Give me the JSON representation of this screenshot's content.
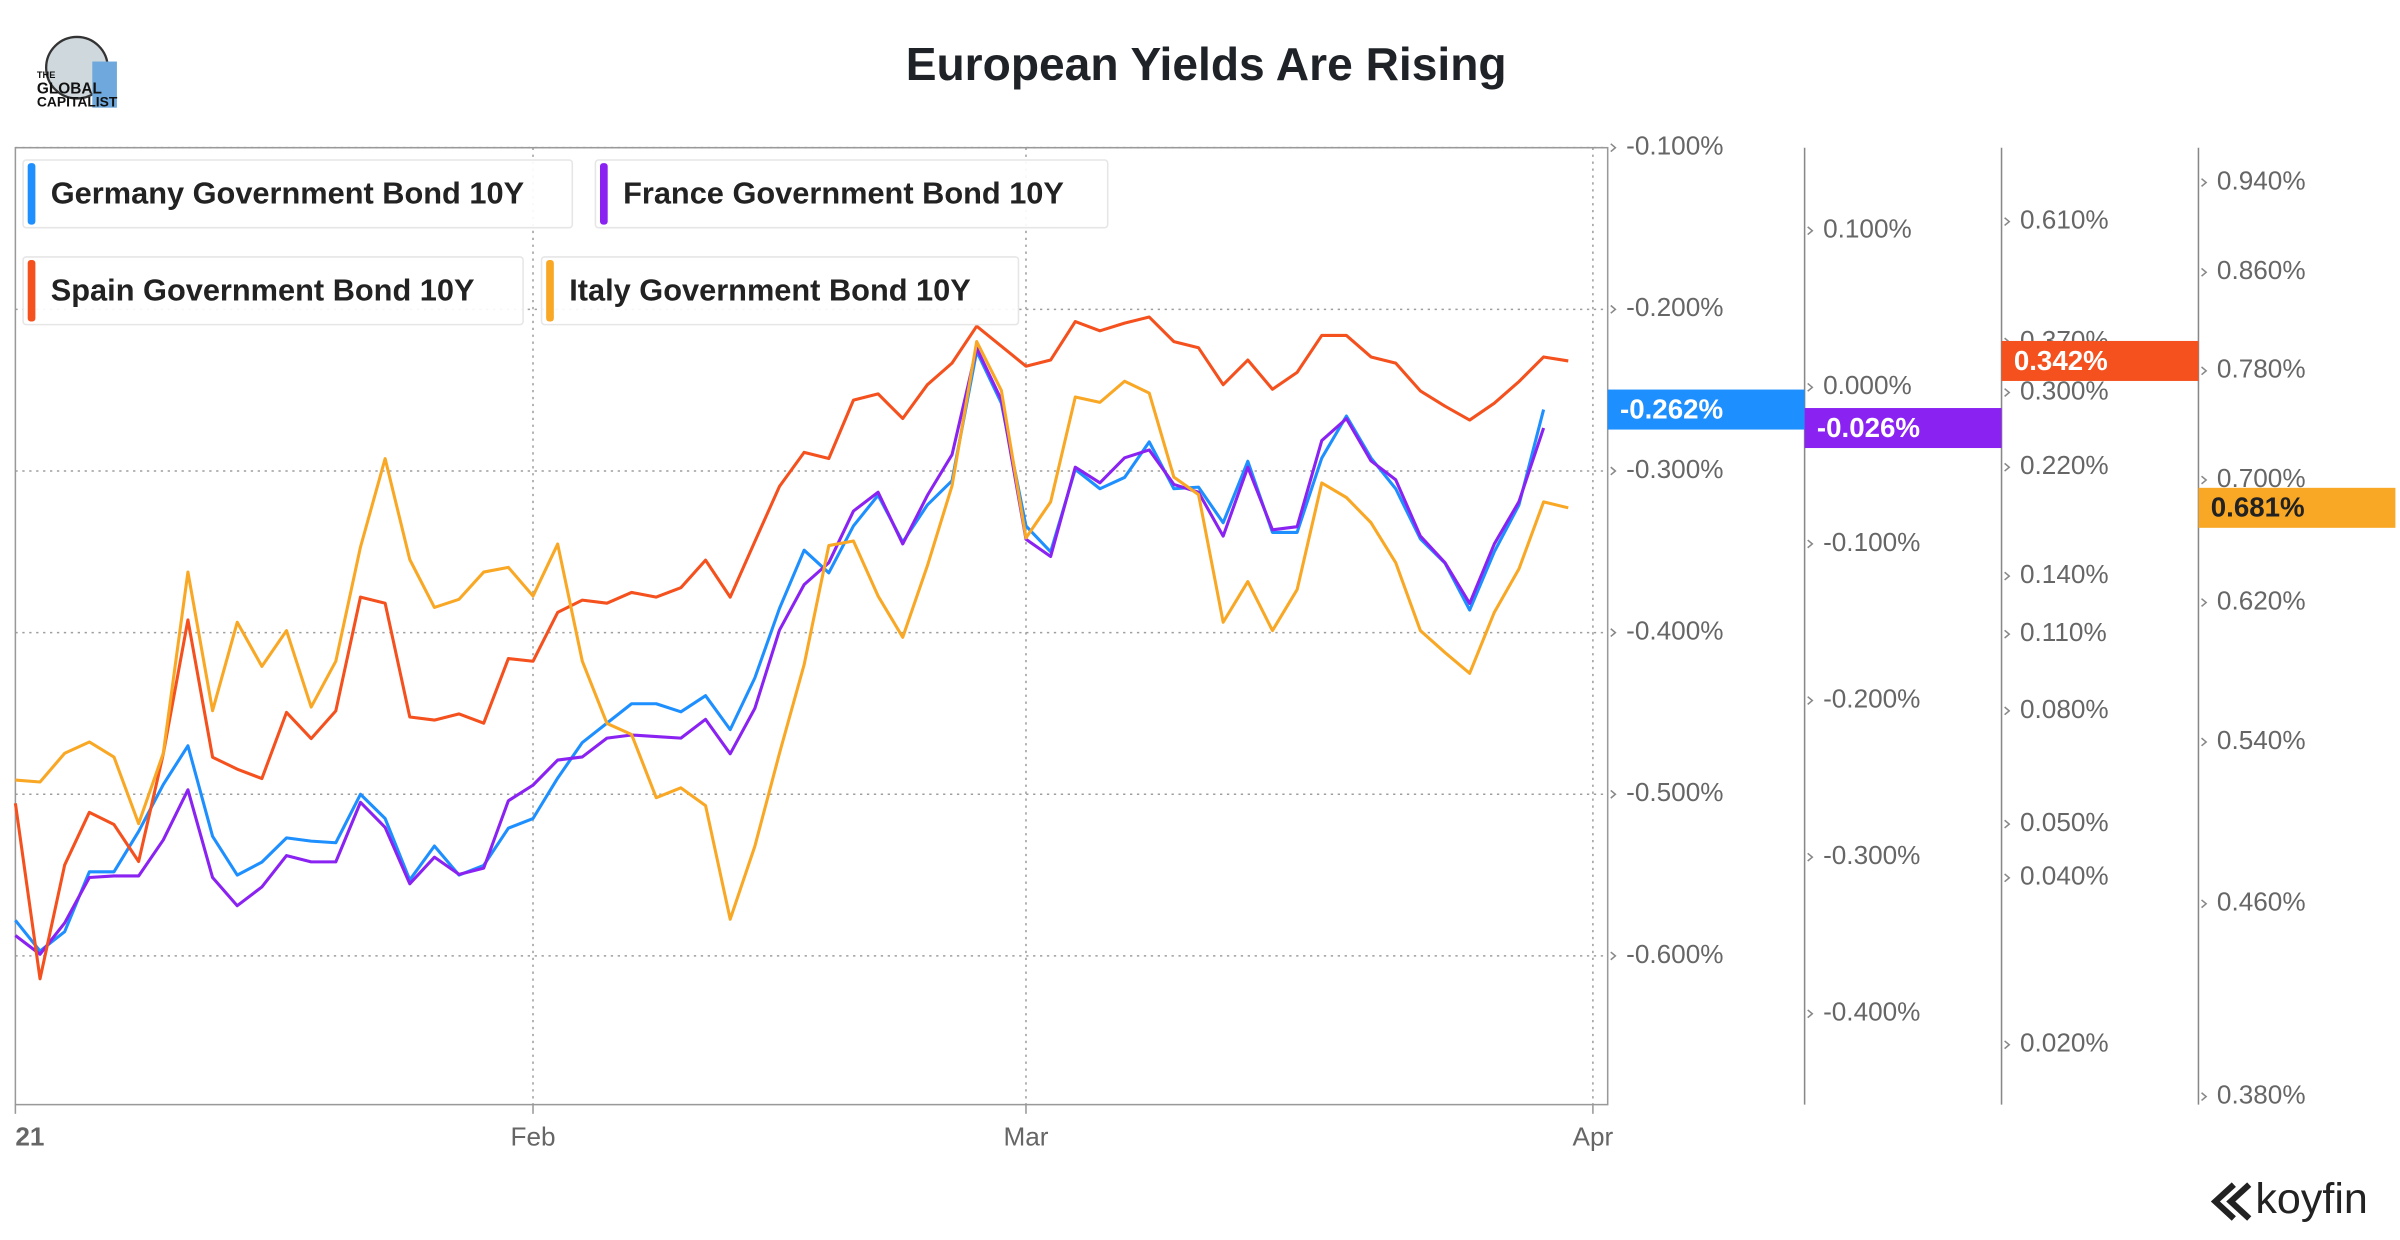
{
  "logo_lines": [
    "THE",
    "GLOBAL",
    "CAPITALIST"
  ],
  "brand": "koyfin",
  "chart_data": {
    "type": "line",
    "title": "European Yields Are Rising",
    "x": [
      0,
      1,
      2,
      3,
      4,
      5,
      6,
      7,
      8,
      9,
      10,
      11,
      12,
      13,
      14,
      15,
      16,
      17,
      18,
      19,
      20,
      21,
      22,
      23,
      24,
      25,
      26,
      27,
      28,
      29,
      30,
      31,
      32,
      33,
      34,
      35,
      36,
      37,
      38,
      39,
      40,
      41,
      42,
      43,
      44,
      45,
      46,
      47,
      48,
      49,
      50,
      51,
      52,
      53,
      54,
      55,
      56,
      57,
      58,
      59,
      60,
      61,
      62,
      63
    ],
    "xlim": [
      0,
      64.6
    ],
    "xticks": [
      {
        "value": 0,
        "label": "21"
      },
      {
        "value": 21,
        "label": "Feb"
      },
      {
        "value": 41,
        "label": "Mar"
      },
      {
        "value": 64,
        "label": "Apr"
      }
    ],
    "grid": true,
    "ylim": [
      -0.692,
      -0.1
    ],
    "yticks": [
      {
        "value": -0.1,
        "label": "-0.100%"
      },
      {
        "value": -0.2,
        "label": "-0.200%"
      },
      {
        "value": -0.3,
        "label": "-0.300%"
      },
      {
        "value": -0.4,
        "label": "-0.400%"
      },
      {
        "value": -0.5,
        "label": "-0.500%"
      },
      {
        "value": -0.6,
        "label": "-0.600%"
      }
    ],
    "y2lim": [
      -0.458,
      0.153
    ],
    "y2ticks": [
      {
        "value": 0.1,
        "label": "0.100%"
      },
      {
        "value": 0,
        "label": "0.000%"
      },
      {
        "value": -0.1,
        "label": "-0.100%"
      },
      {
        "value": -0.2,
        "label": "-0.200%"
      },
      {
        "value": -0.3,
        "label": "-0.300%"
      },
      {
        "value": -0.4,
        "label": "-0.400%"
      }
    ],
    "y3lim": [
      0.0156,
      0.829
    ],
    "y3scale": "log",
    "y3ticks": [
      {
        "value": 0.61,
        "label": "0.610%"
      },
      {
        "value": 0.37,
        "label": "0.370%"
      },
      {
        "value": 0.3,
        "label": "0.300%"
      },
      {
        "value": 0.22,
        "label": "0.220%"
      },
      {
        "value": 0.14,
        "label": "0.140%"
      },
      {
        "value": 0.11,
        "label": "0.110%"
      },
      {
        "value": 0.08,
        "label": "0.080%"
      },
      {
        "value": 0.05,
        "label": "0.050%"
      },
      {
        "value": 0.04,
        "label": "0.040%"
      },
      {
        "value": 0.02,
        "label": "0.020%"
      }
    ],
    "y4lim": [
      0.377,
      0.973
    ],
    "y4scale": "log",
    "y4ticks": [
      {
        "value": 0.94,
        "label": "0.940%"
      },
      {
        "value": 0.86,
        "label": "0.860%"
      },
      {
        "value": 0.78,
        "label": "0.780%"
      },
      {
        "value": 0.7,
        "label": "0.700%"
      },
      {
        "value": 0.62,
        "label": "0.620%"
      },
      {
        "value": 0.54,
        "label": "0.540%"
      },
      {
        "value": 0.46,
        "label": "0.460%"
      },
      {
        "value": 0.38,
        "label": "0.380%"
      }
    ],
    "series": [
      {
        "name": "Germany Government Bond 10Y",
        "color": "#1e8fff",
        "axis": "y",
        "values": [
          -0.578,
          -0.597,
          -0.585,
          -0.548,
          -0.548,
          -0.523,
          -0.494,
          -0.47,
          -0.526,
          -0.55,
          -0.542,
          -0.527,
          -0.529,
          -0.53,
          -0.5,
          -0.515,
          -0.553,
          -0.532,
          -0.55,
          -0.544,
          -0.521,
          -0.515,
          -0.49,
          -0.468,
          -0.456,
          -0.444,
          -0.444,
          -0.449,
          -0.439,
          -0.46,
          -0.428,
          -0.385,
          -0.349,
          -0.363,
          -0.334,
          -0.315,
          -0.344,
          -0.321,
          -0.306,
          -0.226,
          -0.258,
          -0.334,
          -0.35,
          -0.299,
          -0.311,
          -0.304,
          -0.282,
          -0.311,
          -0.31,
          -0.332,
          -0.294,
          -0.338,
          -0.338,
          -0.292,
          -0.266,
          -0.292,
          -0.311,
          -0.342,
          -0.357,
          -0.386,
          -0.35,
          -0.321,
          -0.262,
          null
        ],
        "value_labels": [
          null,
          null,
          null,
          null,
          null,
          null,
          null,
          null,
          null,
          null,
          null,
          null,
          null,
          null,
          null,
          null,
          null,
          null,
          null,
          null,
          null,
          null,
          null,
          null,
          null,
          null,
          null,
          null,
          null,
          null,
          null,
          null,
          null,
          null,
          null,
          null,
          null,
          null,
          null,
          null,
          null,
          null,
          null,
          null,
          null,
          null,
          null,
          null,
          null,
          null,
          null,
          null,
          null,
          null,
          null,
          null,
          null,
          null,
          null,
          null,
          null,
          null,
          "-0.262%",
          null
        ]
      },
      {
        "name": "France Government Bond 10Y",
        "color": "#8a22f2",
        "axis": "y2",
        "values": [
          -0.35,
          -0.362,
          -0.342,
          -0.313,
          -0.312,
          -0.312,
          -0.289,
          -0.257,
          -0.313,
          -0.331,
          -0.319,
          -0.299,
          -0.303,
          -0.303,
          -0.265,
          -0.281,
          -0.317,
          -0.3,
          -0.311,
          -0.307,
          -0.264,
          -0.254,
          -0.238,
          -0.236,
          -0.224,
          -0.222,
          -0.223,
          -0.224,
          -0.212,
          -0.234,
          -0.205,
          -0.155,
          -0.126,
          -0.112,
          -0.079,
          -0.067,
          -0.1,
          -0.069,
          -0.043,
          0.025,
          -0.008,
          -0.097,
          -0.108,
          -0.051,
          -0.061,
          -0.045,
          -0.04,
          -0.062,
          -0.067,
          -0.095,
          -0.051,
          -0.091,
          -0.089,
          -0.034,
          -0.02,
          -0.047,
          -0.059,
          -0.095,
          -0.112,
          -0.138,
          -0.1,
          -0.073,
          -0.026,
          null
        ],
        "value_labels": [
          null,
          null,
          null,
          null,
          null,
          null,
          null,
          null,
          null,
          null,
          null,
          null,
          null,
          null,
          null,
          null,
          null,
          null,
          null,
          null,
          null,
          null,
          null,
          null,
          null,
          null,
          null,
          null,
          null,
          null,
          null,
          null,
          null,
          null,
          null,
          null,
          null,
          null,
          null,
          null,
          null,
          null,
          null,
          null,
          null,
          null,
          null,
          null,
          null,
          null,
          null,
          null,
          null,
          null,
          null,
          null,
          null,
          null,
          null,
          null,
          null,
          null,
          "-0.026%",
          null
        ]
      },
      {
        "name": "Spain Government Bond 10Y",
        "color": "#f4511e",
        "axis": "y3",
        "values": [
          0.0545,
          0.0263,
          0.0422,
          0.0525,
          0.0499,
          0.0428,
          0.0669,
          0.1167,
          0.066,
          0.0628,
          0.0604,
          0.0795,
          0.0713,
          0.08,
          0.1283,
          0.1251,
          0.078,
          0.077,
          0.079,
          0.076,
          0.0994,
          0.0983,
          0.1204,
          0.1267,
          0.1251,
          0.1308,
          0.1283,
          0.1334,
          0.1496,
          0.1283,
          0.1616,
          0.2032,
          0.234,
          0.2281,
          0.2907,
          0.2983,
          0.2693,
          0.3099,
          0.3389,
          0.3951,
          0.3636,
          0.3346,
          0.3433,
          0.4027,
          0.3876,
          0.4001,
          0.4104,
          0.3706,
          0.3612,
          0.3099,
          0.3433,
          0.3041,
          0.3261,
          0.3802,
          0.3802,
          0.3477,
          0.3389,
          0.302,
          0.2834,
          0.2676,
          0.287,
          0.3139,
          0.3477,
          0.342
        ],
        "value_labels": [
          null,
          null,
          null,
          null,
          null,
          null,
          null,
          null,
          null,
          null,
          null,
          null,
          null,
          null,
          null,
          null,
          null,
          null,
          null,
          null,
          null,
          null,
          null,
          null,
          null,
          null,
          null,
          null,
          null,
          null,
          null,
          null,
          null,
          null,
          null,
          null,
          null,
          null,
          null,
          null,
          null,
          null,
          null,
          null,
          null,
          null,
          null,
          null,
          null,
          null,
          null,
          null,
          null,
          null,
          null,
          null,
          null,
          null,
          null,
          null,
          null,
          null,
          null,
          "0.342%"
        ]
      },
      {
        "name": "Italy Government Bond 10Y",
        "color": "#f9a825",
        "axis": "y4",
        "values": [
          0.52,
          0.519,
          0.534,
          0.54,
          0.532,
          0.498,
          0.534,
          0.639,
          0.557,
          0.608,
          0.582,
          0.603,
          0.559,
          0.585,
          0.655,
          0.715,
          0.647,
          0.617,
          0.622,
          0.639,
          0.642,
          0.624,
          0.657,
          0.585,
          0.55,
          0.544,
          0.511,
          0.516,
          0.507,
          0.453,
          0.487,
          0.534,
          0.583,
          0.656,
          0.659,
          0.624,
          0.599,
          0.643,
          0.696,
          0.803,
          0.765,
          0.661,
          0.685,
          0.76,
          0.756,
          0.772,
          0.763,
          0.702,
          0.69,
          0.608,
          0.633,
          0.603,
          0.628,
          0.698,
          0.688,
          0.671,
          0.645,
          0.603,
          0.59,
          0.578,
          0.614,
          0.641,
          0.685,
          0.681
        ],
        "value_labels": [
          null,
          null,
          null,
          null,
          null,
          null,
          null,
          null,
          null,
          null,
          null,
          null,
          null,
          null,
          null,
          null,
          null,
          null,
          null,
          null,
          null,
          null,
          null,
          null,
          null,
          null,
          null,
          null,
          null,
          null,
          null,
          null,
          null,
          null,
          null,
          null,
          null,
          null,
          null,
          null,
          null,
          null,
          null,
          null,
          null,
          null,
          null,
          null,
          null,
          null,
          null,
          null,
          null,
          null,
          null,
          null,
          null,
          null,
          null,
          null,
          null,
          null,
          null,
          "0.681%"
        ]
      }
    ]
  }
}
